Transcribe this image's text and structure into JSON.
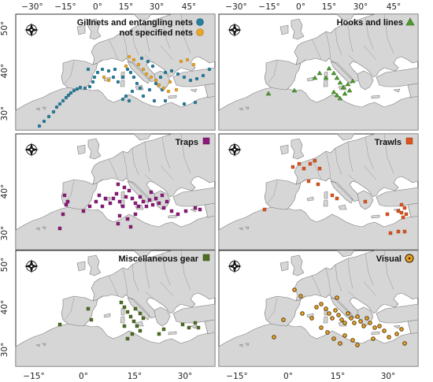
{
  "axes": {
    "top_lon_labels_left": [
      "−30°",
      "−15°",
      "0°",
      "15°",
      "30°",
      "45°"
    ],
    "top_lon_labels_right": [
      "−30°",
      "−15°",
      "0°",
      "15°",
      "30°",
      "45°"
    ],
    "bottom_lon_labels_left": [
      "−15°",
      "0°",
      "15°",
      "30°"
    ],
    "bottom_lon_labels_right": [
      "−15°",
      "0°",
      "15°",
      "30°"
    ],
    "lat_labels": [
      "50°",
      "40°",
      "30°"
    ]
  },
  "panels": [
    {
      "id": "gillnets",
      "legend": [
        {
          "label": "Gillnets and entangling nets",
          "color": "#2a7f9c",
          "marker": "circle"
        },
        {
          "label": "not specified nets",
          "color": "#e8a52a",
          "marker": "circle"
        }
      ]
    },
    {
      "id": "hooks",
      "legend": [
        {
          "label": "Hooks and lines",
          "color": "#4e9a2e",
          "marker": "triangle"
        }
      ]
    },
    {
      "id": "traps",
      "legend": [
        {
          "label": "Traps",
          "color": "#8b1a7a",
          "marker": "square"
        }
      ]
    },
    {
      "id": "trawls",
      "legend": [
        {
          "label": "Trawls",
          "color": "#d9531e",
          "marker": "square"
        }
      ]
    },
    {
      "id": "misc",
      "legend": [
        {
          "label": "Miscellaneous gear",
          "color": "#4f6e22",
          "marker": "square"
        }
      ]
    },
    {
      "id": "visual",
      "legend": [
        {
          "label": "Visual",
          "color": "#e8a52a",
          "marker": "ringed-circle"
        }
      ]
    }
  ],
  "icons": {
    "compass": "compass-rose-icon"
  },
  "colors": {
    "land": "#d6d6d6",
    "sea": "#ffffff",
    "frame": "#333333"
  }
}
